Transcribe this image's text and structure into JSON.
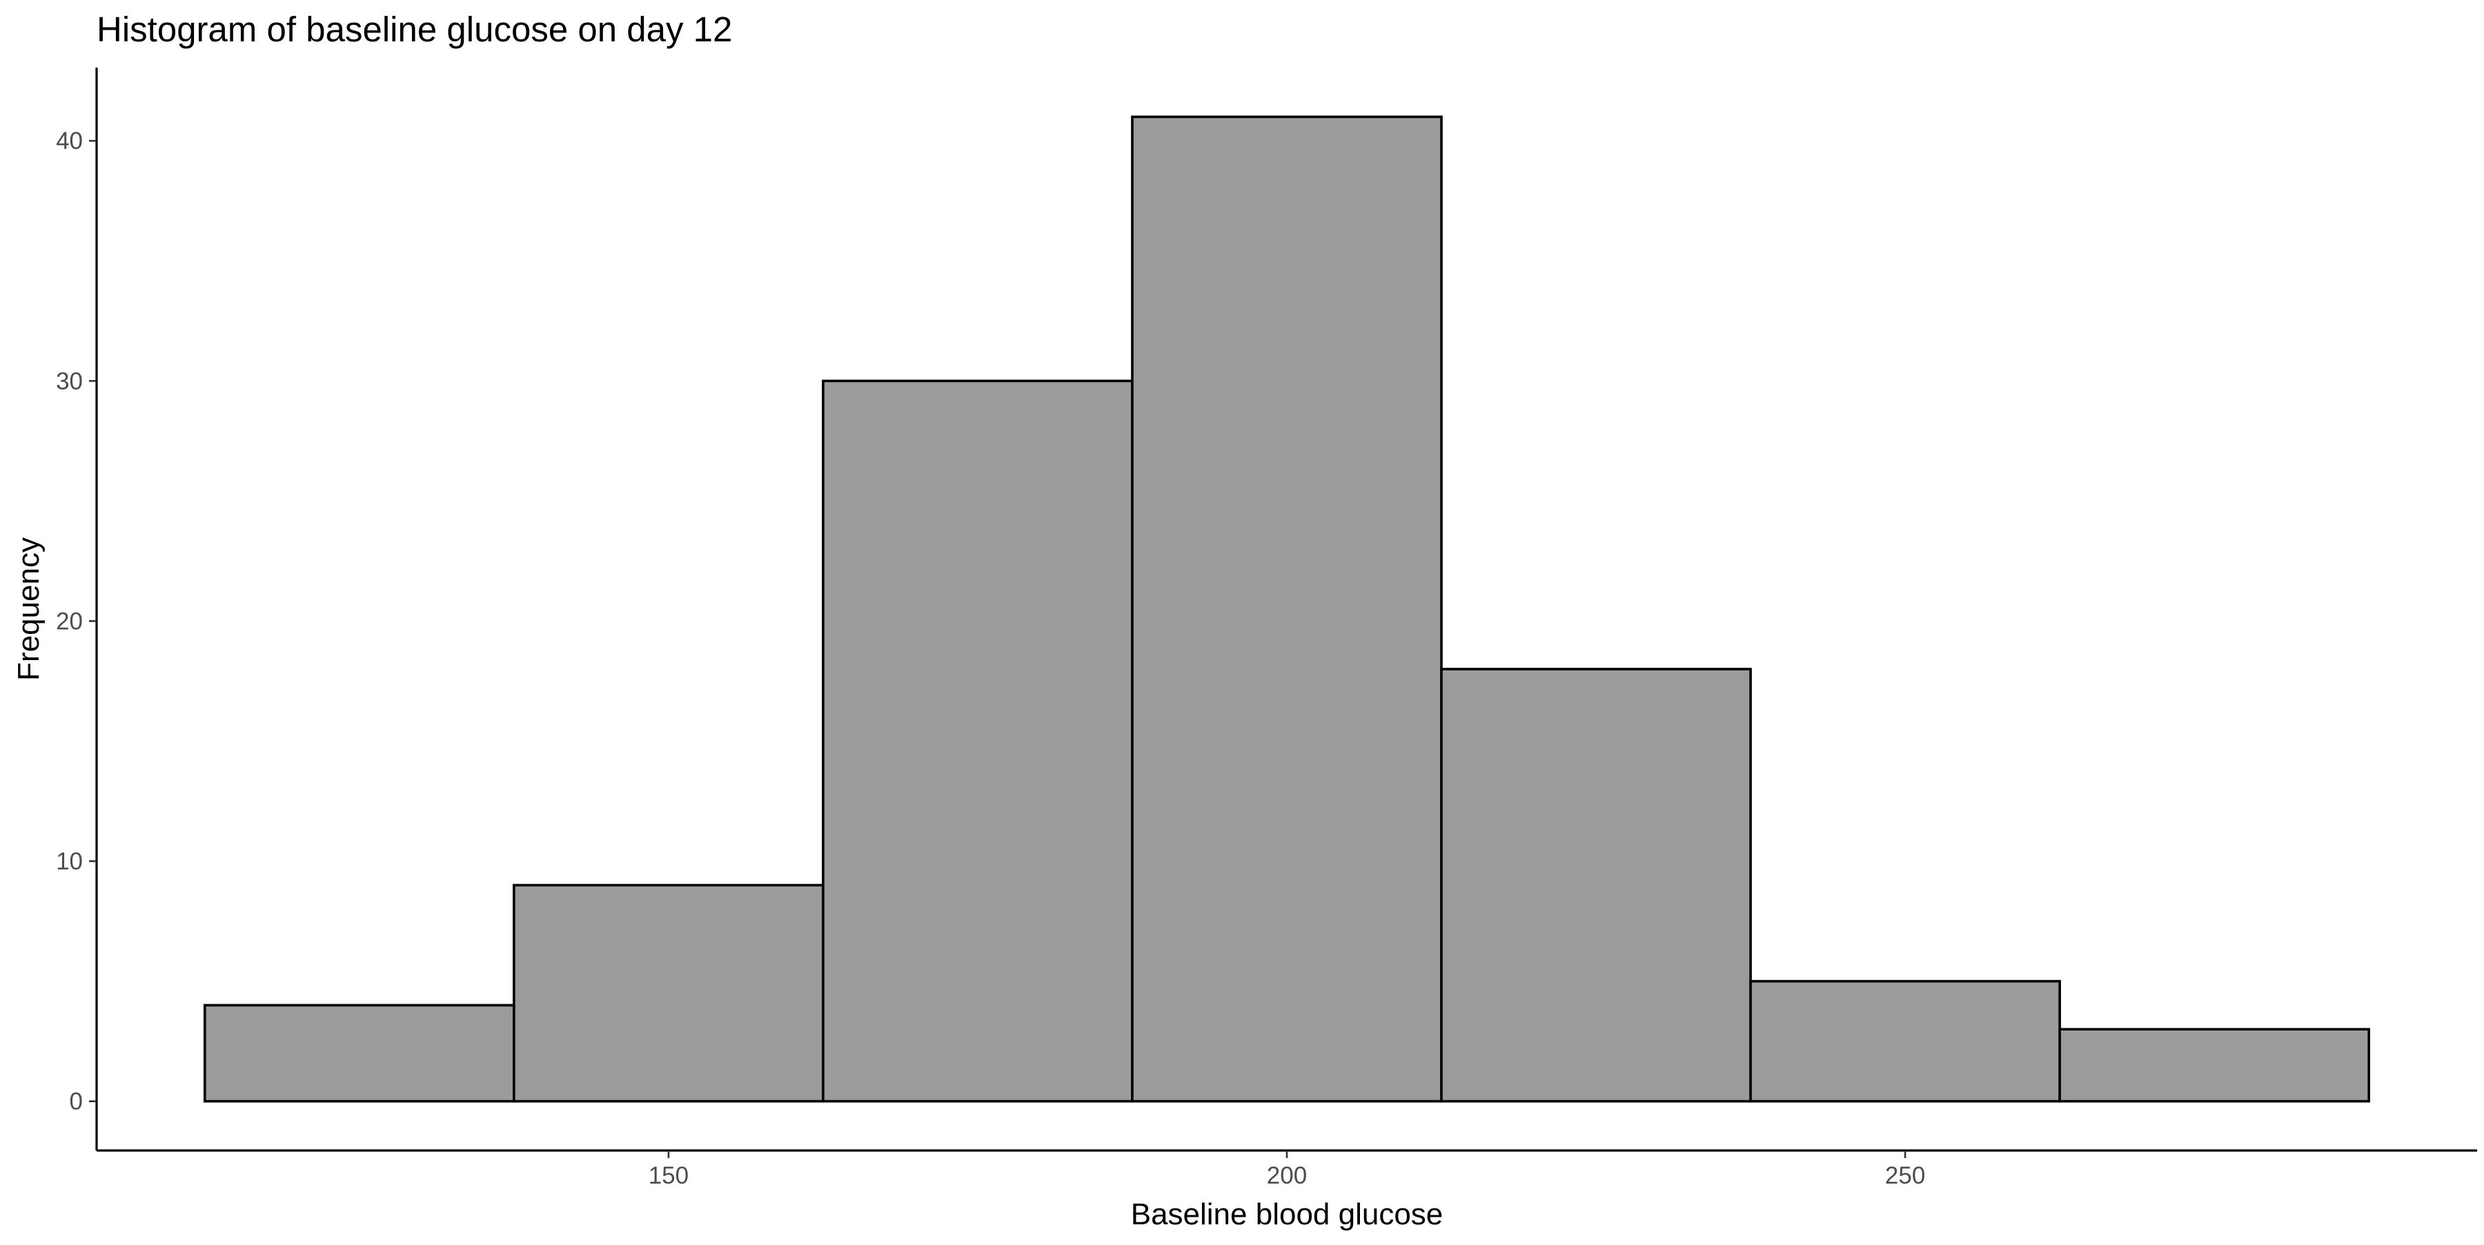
{
  "chart_data": {
    "type": "bar",
    "title": "Histogram of baseline glucose on day 12",
    "xlabel": "Baseline blood glucose",
    "ylabel": "Frequency",
    "bins": [
      {
        "x0": 112.5,
        "x1": 137.5,
        "value": 4
      },
      {
        "x0": 137.5,
        "x1": 162.5,
        "value": 9
      },
      {
        "x0": 162.5,
        "x1": 187.5,
        "value": 30
      },
      {
        "x0": 187.5,
        "x1": 212.5,
        "value": 41
      },
      {
        "x0": 212.5,
        "x1": 237.5,
        "value": 18
      },
      {
        "x0": 237.5,
        "x1": 262.5,
        "value": 5
      },
      {
        "x0": 262.5,
        "x1": 287.5,
        "value": 3
      }
    ],
    "xlim": [
      103.75,
      296.25
    ],
    "ylim": [
      -2.05,
      43.05
    ],
    "xticks": [
      150,
      200,
      250
    ],
    "yticks": [
      0,
      10,
      20,
      30,
      40
    ],
    "grid": false,
    "colors": {
      "bar_fill": "#9b9b9b",
      "bar_outline": "#000000"
    }
  }
}
